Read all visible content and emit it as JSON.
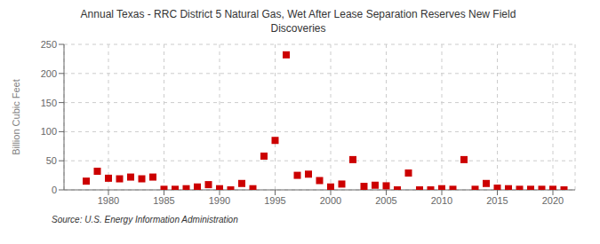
{
  "chart_data": {
    "type": "scatter",
    "title": "Annual Texas - RRC District 5 Natural Gas, Wet After Lease Separation Reserves New Field\nDiscoveries",
    "ylabel": "Billion Cubic Feet",
    "source": "Source: U.S. Energy Information Administration",
    "x": [
      1978,
      1979,
      1980,
      1981,
      1982,
      1983,
      1984,
      1985,
      1986,
      1987,
      1988,
      1989,
      1990,
      1991,
      1992,
      1993,
      1994,
      1995,
      1996,
      1997,
      1998,
      1999,
      2000,
      2001,
      2002,
      2003,
      2004,
      2005,
      2006,
      2007,
      2008,
      2009,
      2010,
      2011,
      2012,
      2013,
      2014,
      2015,
      2016,
      2017,
      2018,
      2019,
      2020,
      2021
    ],
    "values": [
      15,
      32,
      20,
      19,
      22,
      19,
      22,
      1,
      1,
      2,
      5,
      9,
      2,
      0,
      11,
      2,
      58,
      85,
      232,
      25,
      27,
      16,
      5,
      10,
      52,
      6,
      8,
      7,
      0,
      29,
      0,
      0,
      2,
      1,
      52,
      1,
      11,
      3,
      2,
      1,
      1,
      1,
      1,
      0
    ],
    "color": "#cc0000",
    "marker": "square",
    "xlim": [
      1976,
      2022
    ],
    "ylim": [
      0,
      250
    ],
    "yticks": [
      0,
      50,
      100,
      150,
      200,
      250
    ],
    "xticks": [
      1980,
      1985,
      1990,
      1995,
      2000,
      2005,
      2010,
      2015,
      2020
    ],
    "grid": true
  }
}
